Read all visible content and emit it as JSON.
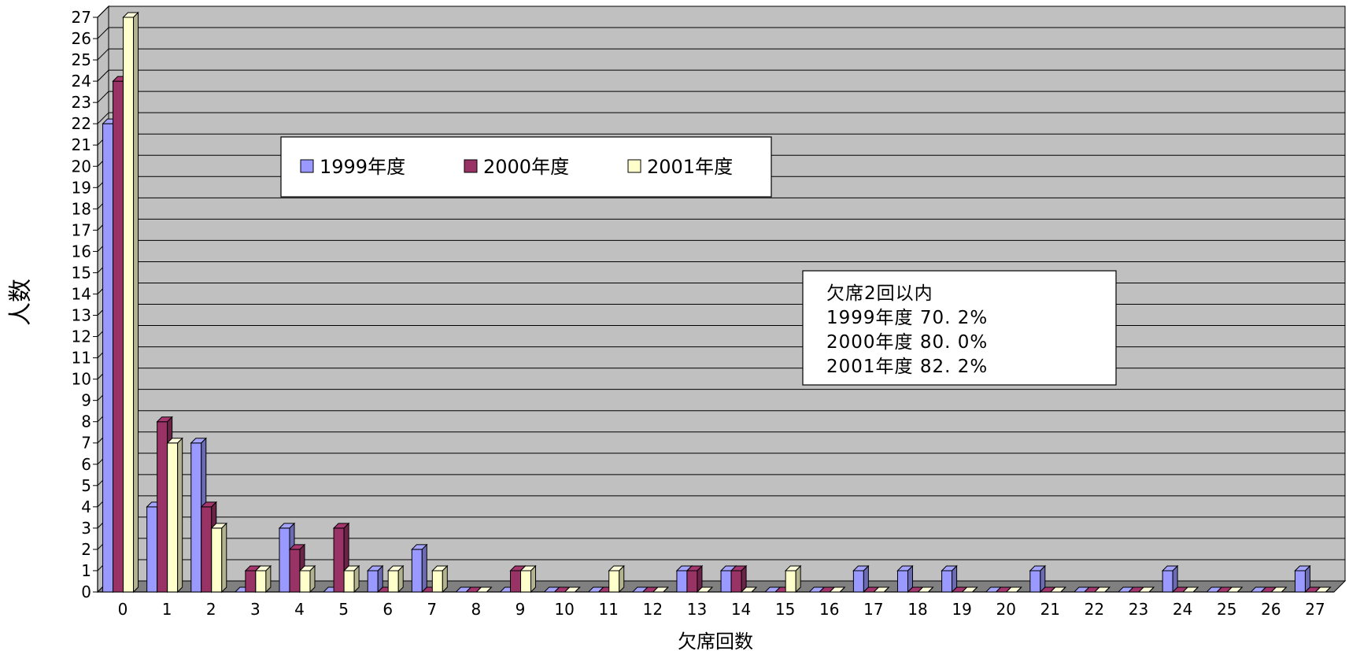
{
  "chart_data": {
    "type": "bar",
    "title": "",
    "xlabel": "欠席回数",
    "ylabel": "人数",
    "ylim": [
      0,
      27
    ],
    "yticks": [
      0,
      1,
      2,
      3,
      4,
      5,
      6,
      7,
      8,
      9,
      10,
      11,
      12,
      13,
      14,
      15,
      16,
      17,
      18,
      19,
      20,
      21,
      22,
      23,
      24,
      25,
      26,
      27
    ],
    "categories": [
      "0",
      "1",
      "2",
      "3",
      "4",
      "5",
      "6",
      "7",
      "8",
      "9",
      "10",
      "11",
      "12",
      "13",
      "14",
      "15",
      "16",
      "17",
      "18",
      "19",
      "20",
      "21",
      "22",
      "23",
      "24",
      "25",
      "26",
      "27"
    ],
    "series": [
      {
        "name": "1999年度",
        "color": "#9999ff",
        "values": [
          22,
          4,
          7,
          0,
          3,
          0,
          1,
          2,
          0,
          0,
          0,
          0,
          0,
          1,
          1,
          0,
          0,
          1,
          1,
          1,
          0,
          1,
          0,
          0,
          1,
          0,
          0,
          1
        ]
      },
      {
        "name": "2000年度",
        "color": "#993366",
        "values": [
          24,
          8,
          4,
          1,
          2,
          3,
          0,
          0,
          0,
          1,
          0,
          0,
          0,
          1,
          1,
          0,
          0,
          0,
          0,
          0,
          0,
          0,
          0,
          0,
          0,
          0,
          0,
          0
        ]
      },
      {
        "name": "2001年度",
        "color": "#ffffcc",
        "values": [
          27,
          7,
          3,
          1,
          1,
          1,
          1,
          1,
          0,
          1,
          0,
          1,
          0,
          0,
          0,
          1,
          0,
          0,
          0,
          0,
          0,
          0,
          0,
          0,
          0,
          0,
          0,
          0
        ]
      }
    ],
    "grid": true,
    "plot_background": "#c0c0c0",
    "legend_placement": "top-left-inside",
    "annotation": {
      "lines": [
        "欠席2回以内",
        "1999年度  70. 2%",
        "2000年度  80. 0%",
        "2001年度  82. 2%"
      ]
    }
  }
}
